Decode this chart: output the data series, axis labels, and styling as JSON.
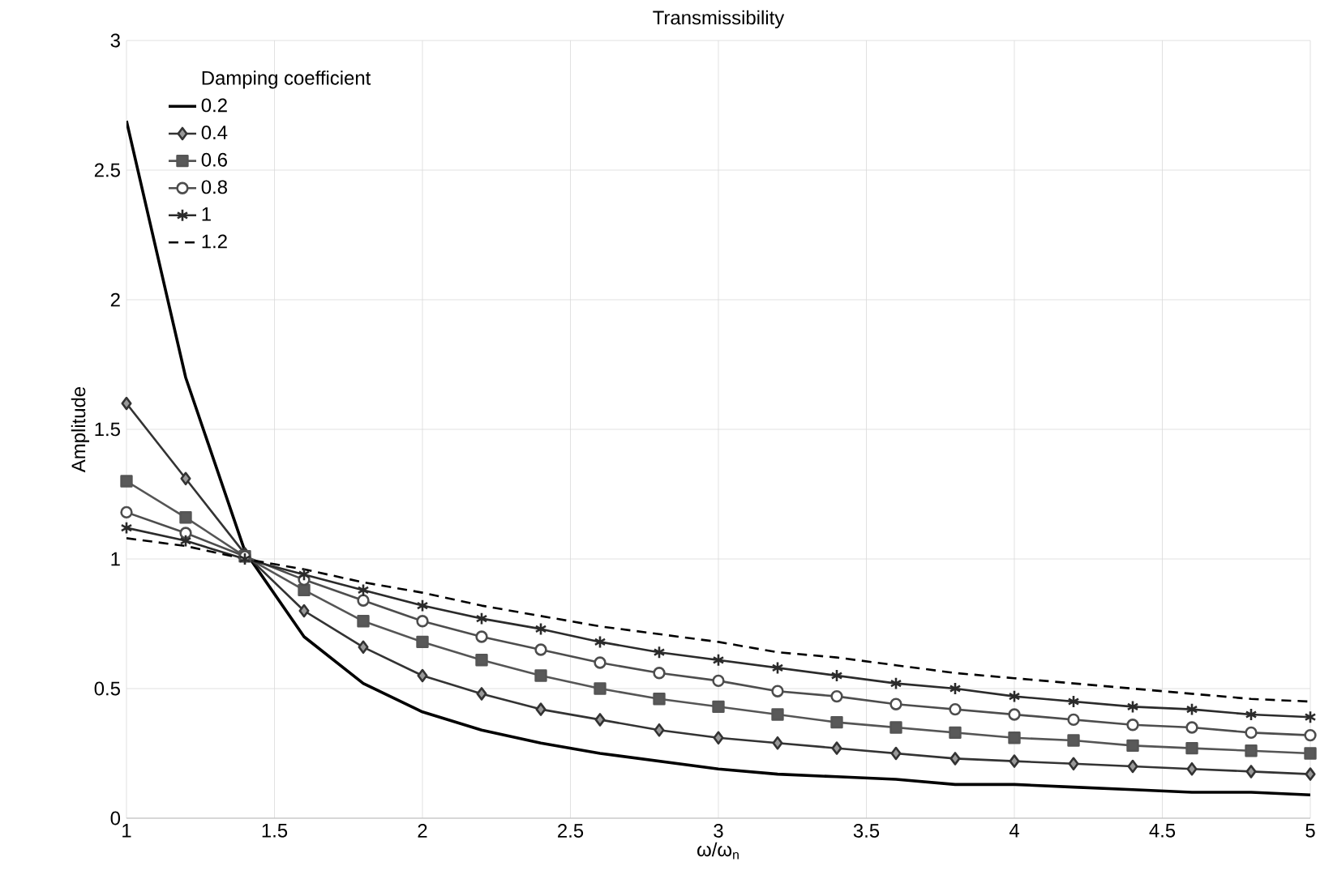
{
  "chart_data": {
    "type": "line",
    "title": "Transmissibility",
    "xlabel": "ω/ω$_{n}$",
    "ylabel": "Amplitude",
    "legend_title": "Damping coefficient",
    "x": [
      1,
      1.2,
      1.4,
      1.6,
      1.8,
      2.0,
      2.2,
      2.4,
      2.6,
      2.8,
      3.0,
      3.2,
      3.4,
      3.6,
      3.8,
      4.0,
      4.2,
      4.4,
      4.6,
      4.8,
      5.0
    ],
    "series": [
      {
        "name": "0.2",
        "color": "#000000",
        "marker": "none",
        "line_style": "solid",
        "values": [
          2.69,
          1.7,
          1.03,
          0.7,
          0.52,
          0.41,
          0.34,
          0.29,
          0.25,
          0.22,
          0.19,
          0.17,
          0.16,
          0.15,
          0.13,
          0.13,
          0.12,
          0.11,
          0.1,
          0.1,
          0.09
        ]
      },
      {
        "name": "0.4",
        "color": "#333333",
        "marker": "diamond",
        "line_style": "solid",
        "values": [
          1.6,
          1.31,
          1.02,
          0.8,
          0.66,
          0.55,
          0.48,
          0.42,
          0.38,
          0.34,
          0.31,
          0.29,
          0.27,
          0.25,
          0.23,
          0.22,
          0.21,
          0.2,
          0.19,
          0.18,
          0.17
        ]
      },
      {
        "name": "0.6",
        "color": "#555555",
        "marker": "square",
        "line_style": "solid",
        "values": [
          1.3,
          1.16,
          1.01,
          0.88,
          0.76,
          0.68,
          0.61,
          0.55,
          0.5,
          0.46,
          0.43,
          0.4,
          0.37,
          0.35,
          0.33,
          0.31,
          0.3,
          0.28,
          0.27,
          0.26,
          0.25
        ]
      },
      {
        "name": "0.8",
        "color": "#4d4d4d",
        "marker": "circle",
        "line_style": "solid",
        "values": [
          1.18,
          1.1,
          1.01,
          0.92,
          0.84,
          0.76,
          0.7,
          0.65,
          0.6,
          0.56,
          0.53,
          0.49,
          0.47,
          0.44,
          0.42,
          0.4,
          0.38,
          0.36,
          0.35,
          0.33,
          0.32
        ]
      },
      {
        "name": "1",
        "color": "#2b2b2b",
        "marker": "cross",
        "line_style": "solid",
        "values": [
          1.12,
          1.07,
          1.0,
          0.94,
          0.88,
          0.82,
          0.77,
          0.73,
          0.68,
          0.64,
          0.61,
          0.58,
          0.55,
          0.52,
          0.5,
          0.47,
          0.45,
          0.43,
          0.42,
          0.4,
          0.39
        ]
      },
      {
        "name": "1.2",
        "color": "#000000",
        "marker": "none",
        "line_style": "dashed",
        "values": [
          1.08,
          1.05,
          1.0,
          0.96,
          0.91,
          0.87,
          0.82,
          0.78,
          0.74,
          0.71,
          0.68,
          0.64,
          0.62,
          0.59,
          0.56,
          0.54,
          0.52,
          0.5,
          0.48,
          0.46,
          0.45
        ]
      }
    ],
    "xlim": [
      1,
      5
    ],
    "ylim": [
      0,
      3
    ],
    "xticks": [
      1,
      1.5,
      2,
      2.5,
      3,
      3.5,
      4,
      4.5,
      5
    ],
    "yticks": [
      0,
      0.5,
      1,
      1.5,
      2,
      2.5,
      3
    ],
    "grid": true,
    "legend": "top left"
  }
}
